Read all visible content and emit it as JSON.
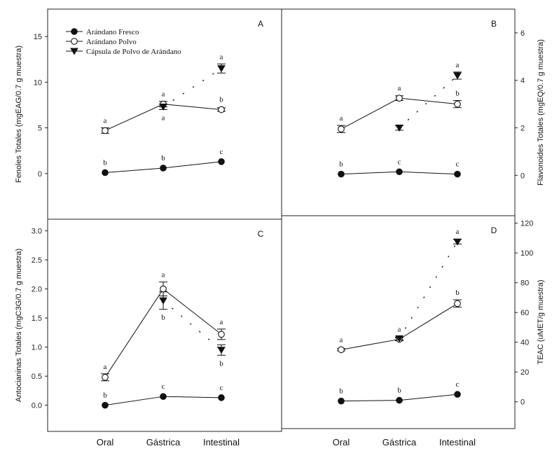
{
  "categories": [
    "Oral",
    "Gástrica",
    "Intestinal"
  ],
  "legend": {
    "items": [
      {
        "label": "Arándano Fresco",
        "marker": "filled-circle"
      },
      {
        "label": "Arándano Polvo",
        "marker": "open-circle"
      },
      {
        "label": "Cápsula de Polvo de Arándano",
        "marker": "filled-triangle-down"
      }
    ]
  },
  "colors": {
    "line": "#111111",
    "fill": "#111111",
    "open": "#ffffff"
  },
  "chart_data": [
    {
      "type": "line",
      "letter": "A",
      "ylabel": "Fenoles Totales (mgEAG/0.7 g muestra)",
      "ylim": [
        -5,
        18
      ],
      "yticks": [
        0,
        5,
        10,
        15
      ],
      "ytick_labels": [
        "0",
        "5",
        "10",
        "15"
      ],
      "axis_side": "left",
      "series": [
        {
          "name": "Arándano Fresco",
          "marker": "filled-circle",
          "values": [
            0.1,
            0.6,
            1.3
          ],
          "err": [
            0,
            0,
            0
          ],
          "letters": [
            "b",
            "b",
            "c"
          ],
          "letter_pos": [
            "above",
            "above",
            "above"
          ],
          "line": "solid"
        },
        {
          "name": "Arándano Polvo",
          "marker": "open-circle",
          "values": [
            4.7,
            7.6,
            7.0
          ],
          "err": [
            0.3,
            0.3,
            0.2
          ],
          "letters": [
            "a",
            "a",
            "b"
          ],
          "letter_pos": [
            "above",
            "above",
            "above"
          ],
          "line": "solid"
        },
        {
          "name": "Cápsula de Polvo de Arándano",
          "marker": "filled-triangle-down",
          "values": [
            null,
            7.3,
            11.5
          ],
          "err": [
            0,
            0.3,
            0.5
          ],
          "letters": [
            "",
            "a",
            "a"
          ],
          "letter_pos": [
            "",
            "below",
            "above"
          ],
          "line": "dotted"
        }
      ]
    },
    {
      "type": "line",
      "letter": "B",
      "ylabel": "Flavonoides Totales (mgEQ/0.7 g muestra)",
      "ylim": [
        -1.7,
        7
      ],
      "yticks": [
        0,
        2,
        4,
        6
      ],
      "ytick_labels": [
        "0",
        "2",
        "4",
        "6"
      ],
      "axis_side": "right",
      "series": [
        {
          "name": "Arándano Fresco",
          "marker": "filled-circle",
          "values": [
            0.05,
            0.15,
            0.05
          ],
          "err": [
            0,
            0,
            0
          ],
          "letters": [
            "b",
            "c",
            "c"
          ],
          "letter_pos": [
            "above",
            "above",
            "above"
          ],
          "line": "solid"
        },
        {
          "name": "Arándano Polvo",
          "marker": "open-circle",
          "values": [
            1.95,
            3.25,
            3.0
          ],
          "err": [
            0.15,
            0.1,
            0.15
          ],
          "letters": [
            "a",
            "a",
            "b"
          ],
          "letter_pos": [
            "above",
            "above",
            "above"
          ],
          "line": "solid"
        },
        {
          "name": "Cápsula de Polvo de Arándano",
          "marker": "filled-triangle-down",
          "values": [
            null,
            2.0,
            4.2
          ],
          "err": [
            0,
            0.1,
            0.15
          ],
          "letters": [
            "",
            "",
            "a"
          ],
          "letter_pos": [
            "",
            "",
            "above"
          ],
          "line": "dotted"
        }
      ]
    },
    {
      "type": "line",
      "letter": "C",
      "ylabel": "Antocianinas Totales (mgC3G/0.7 g muestra)",
      "ylim": [
        -0.45,
        3.2
      ],
      "yticks": [
        0,
        0.5,
        1.0,
        1.5,
        2.0,
        2.5,
        3.0
      ],
      "ytick_labels": [
        "0.0",
        "0.5",
        "1.0",
        "1.5",
        "2.0",
        "2.5",
        "3.0"
      ],
      "axis_side": "left",
      "series": [
        {
          "name": "Arándano Fresco",
          "marker": "filled-circle",
          "values": [
            0.0,
            0.15,
            0.13
          ],
          "err": [
            0,
            0,
            0
          ],
          "letters": [
            "b",
            "c",
            "c"
          ],
          "letter_pos": [
            "above",
            "above",
            "above"
          ],
          "line": "solid"
        },
        {
          "name": "Arándano Polvo",
          "marker": "open-circle",
          "values": [
            0.48,
            2.0,
            1.22
          ],
          "err": [
            0.06,
            0.12,
            0.09
          ],
          "letters": [
            "a",
            "a",
            "a"
          ],
          "letter_pos": [
            "above",
            "above",
            "above"
          ],
          "line": "solid"
        },
        {
          "name": "Cápsula de Polvo de Arándano",
          "marker": "filled-triangle-down",
          "values": [
            null,
            1.8,
            0.95
          ],
          "err": [
            0,
            0.15,
            0.09
          ],
          "letters": [
            "",
            "b",
            "b"
          ],
          "letter_pos": [
            "",
            "below",
            "below"
          ],
          "line": "dotted"
        }
      ]
    },
    {
      "type": "line",
      "letter": "D",
      "ylabel": "TEAC (uMET/g muestra)",
      "ylim": [
        -18,
        125
      ],
      "yticks": [
        0,
        20,
        40,
        60,
        80,
        100,
        120
      ],
      "ytick_labels": [
        "0",
        "20",
        "40",
        "60",
        "80",
        "100",
        "120"
      ],
      "axis_side": "right",
      "series": [
        {
          "name": "Arándano Fresco",
          "marker": "filled-circle",
          "values": [
            0.5,
            1.0,
            5.0
          ],
          "err": [
            0,
            0,
            0
          ],
          "letters": [
            "b",
            "b",
            "c"
          ],
          "letter_pos": [
            "above",
            "above",
            "above"
          ],
          "line": "solid"
        },
        {
          "name": "Arándano Polvo",
          "marker": "open-circle",
          "values": [
            35,
            42,
            66
          ],
          "err": [
            0.8,
            1,
            2.5
          ],
          "letters": [
            "a",
            "a",
            "b"
          ],
          "letter_pos": [
            "above",
            "above",
            "above"
          ],
          "line": "solid"
        },
        {
          "name": "Cápsula de Polvo de Arándano",
          "marker": "filled-triangle-down",
          "values": [
            null,
            42.5,
            107.5
          ],
          "err": [
            0,
            1,
            1.5
          ],
          "letters": [
            "",
            "",
            "a"
          ],
          "letter_pos": [
            "",
            "",
            "above"
          ],
          "line": "dotted"
        }
      ]
    }
  ]
}
